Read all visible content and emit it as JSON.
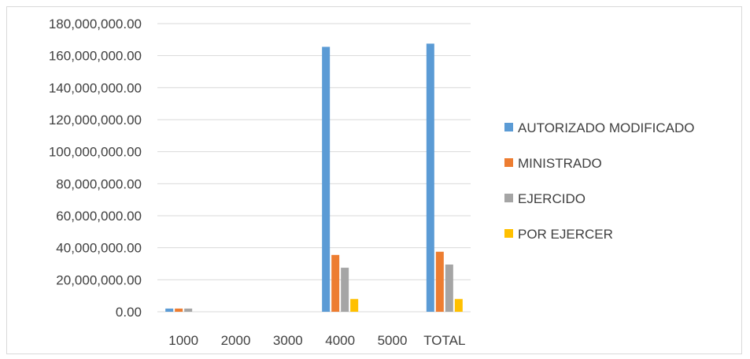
{
  "chart_data": {
    "type": "bar",
    "categories": [
      "1000",
      "2000",
      "3000",
      "4000",
      "5000",
      "TOTAL"
    ],
    "series": [
      {
        "name": "AUTORIZADO MODIFICADO",
        "color": "#5b9bd5",
        "values": [
          2000000,
          0,
          0,
          165500000,
          0,
          167500000
        ]
      },
      {
        "name": "MINISTRADO",
        "color": "#ed7d31",
        "values": [
          2000000,
          0,
          0,
          35500000,
          0,
          37500000
        ]
      },
      {
        "name": "EJERCIDO",
        "color": "#a5a5a5",
        "values": [
          2000000,
          0,
          0,
          27500000,
          0,
          29500000
        ]
      },
      {
        "name": "POR EJERCER",
        "color": "#ffc000",
        "values": [
          0,
          0,
          0,
          8000000,
          0,
          8000000
        ]
      }
    ],
    "y_ticks": [
      "0.00",
      "20,000,000.00",
      "40,000,000.00",
      "60,000,000.00",
      "80,000,000.00",
      "100,000,000.00",
      "120,000,000.00",
      "140,000,000.00",
      "160,000,000.00",
      "180,000,000.00"
    ],
    "ylim": [
      0,
      180000000
    ],
    "ystep": 20000000,
    "grid": true,
    "legend_position": "right"
  }
}
